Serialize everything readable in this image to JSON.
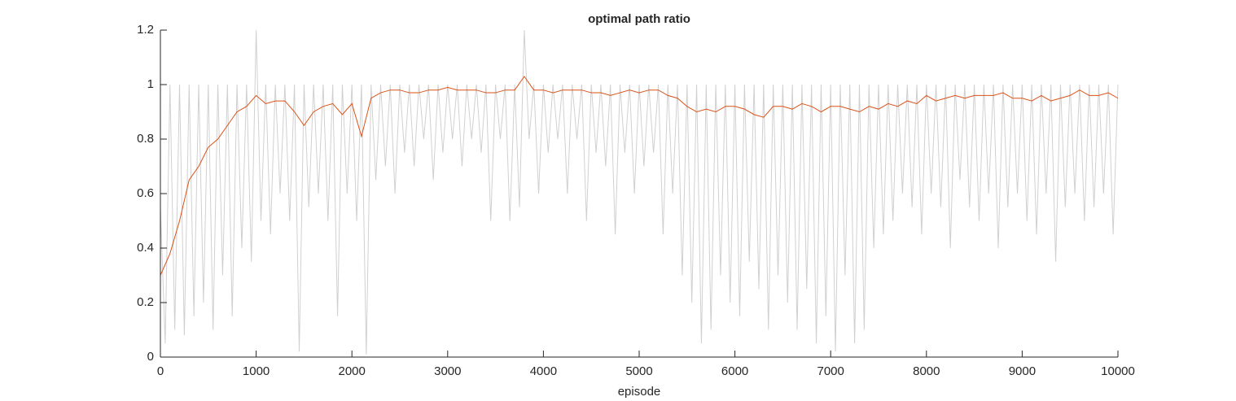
{
  "chart_data": {
    "type": "line",
    "title": "optimal path ratio",
    "x_label": "episode",
    "xlim": [
      0,
      10000
    ],
    "xticks": [
      0,
      1000,
      2000,
      3000,
      4000,
      5000,
      6000,
      7000,
      8000,
      9000,
      10000
    ],
    "ylim": [
      0,
      1.2
    ],
    "yticks": [
      0,
      0.2,
      0.4,
      0.6,
      0.8,
      1,
      1.2
    ],
    "series": [
      {
        "color": "#d0d0d0",
        "x": [
          0,
          50,
          100,
          150,
          200,
          250,
          300,
          350,
          400,
          450,
          500,
          550,
          600,
          650,
          700,
          750,
          800,
          850,
          900,
          950,
          1000,
          1050,
          1100,
          1150,
          1200,
          1250,
          1300,
          1350,
          1400,
          1450,
          1500,
          1550,
          1600,
          1650,
          1700,
          1750,
          1800,
          1850,
          1900,
          1950,
          2000,
          2050,
          2100,
          2150,
          2200,
          2250,
          2300,
          2350,
          2400,
          2450,
          2500,
          2550,
          2600,
          2650,
          2700,
          2750,
          2800,
          2850,
          2900,
          2950,
          3000,
          3050,
          3100,
          3150,
          3200,
          3250,
          3300,
          3350,
          3400,
          3450,
          3500,
          3550,
          3600,
          3650,
          3700,
          3750,
          3800,
          3850,
          3900,
          3950,
          4000,
          4050,
          4100,
          4150,
          4200,
          4250,
          4300,
          4350,
          4400,
          4450,
          4500,
          4550,
          4600,
          4650,
          4700,
          4750,
          4800,
          4850,
          4900,
          4950,
          5000,
          5050,
          5100,
          5150,
          5200,
          5250,
          5300,
          5350,
          5400,
          5450,
          5500,
          5550,
          5600,
          5650,
          5700,
          5750,
          5800,
          5850,
          5900,
          5950,
          6000,
          6050,
          6100,
          6150,
          6200,
          6250,
          6300,
          6350,
          6400,
          6450,
          6500,
          6550,
          6600,
          6650,
          6700,
          6750,
          6800,
          6850,
          6900,
          6950,
          7000,
          7050,
          7100,
          7150,
          7200,
          7250,
          7300,
          7350,
          7400,
          7450,
          7500,
          7550,
          7600,
          7650,
          7700,
          7750,
          7800,
          7850,
          7900,
          7950,
          8000,
          8050,
          8100,
          8150,
          8200,
          8250,
          8300,
          8350,
          8400,
          8450,
          8500,
          8550,
          8600,
          8650,
          8700,
          8750,
          8800,
          8850,
          8900,
          8950,
          9000,
          9050,
          9100,
          9150,
          9200,
          9250,
          9300,
          9350,
          9400,
          9450,
          9500,
          9550,
          9600,
          9650,
          9700,
          9750,
          9800,
          9850,
          9900,
          9950,
          10000
        ],
        "values": [
          0.55,
          0.05,
          1,
          0.1,
          1,
          0.08,
          1,
          0.15,
          1,
          0.2,
          1,
          0.1,
          1,
          0.3,
          1,
          0.15,
          1,
          0.4,
          1,
          0.35,
          1.2,
          0.5,
          1,
          0.45,
          1,
          0.6,
          1,
          0.5,
          1,
          0.02,
          1,
          0.55,
          1,
          0.6,
          1,
          0.5,
          1,
          0.15,
          1,
          0.6,
          1,
          0.5,
          1,
          0.01,
          1,
          0.65,
          1,
          0.7,
          1,
          0.6,
          1,
          0.75,
          1,
          0.7,
          1,
          0.8,
          1,
          0.65,
          1,
          0.75,
          1,
          0.8,
          1,
          0.7,
          1,
          0.8,
          1,
          0.75,
          1,
          0.5,
          1,
          0.8,
          1,
          0.5,
          1,
          0.55,
          1.2,
          0.8,
          1,
          0.6,
          1,
          0.75,
          1,
          0.8,
          1,
          0.6,
          1,
          0.8,
          1,
          0.5,
          1,
          0.75,
          1,
          0.7,
          1,
          0.45,
          1,
          0.75,
          1,
          0.6,
          1,
          0.7,
          1,
          0.75,
          1,
          0.45,
          1,
          0.6,
          1,
          0.3,
          1,
          0.2,
          1,
          0.05,
          1,
          0.1,
          1,
          0.3,
          1,
          0.2,
          1,
          0.15,
          1,
          0.35,
          1,
          0.25,
          1,
          0.1,
          1,
          0.3,
          1,
          0.2,
          1,
          0.1,
          1,
          0.25,
          1,
          0.05,
          1,
          0.15,
          1,
          0.02,
          1,
          0.3,
          1,
          0.05,
          1,
          0.1,
          1,
          0.4,
          1,
          0.45,
          1,
          0.5,
          1,
          0.6,
          1,
          0.55,
          1,
          0.45,
          1,
          0.6,
          1,
          0.55,
          1,
          0.4,
          1,
          0.65,
          1,
          0.55,
          1,
          0.5,
          1,
          0.6,
          1,
          0.4,
          1,
          0.55,
          1,
          0.6,
          1,
          0.5,
          1,
          0.45,
          1,
          0.6,
          1,
          0.35,
          1,
          0.55,
          1,
          0.6,
          1,
          0.5,
          1,
          0.55,
          1,
          0.6,
          1,
          0.45,
          1
        ]
      },
      {
        "color": "#d95319",
        "x": [
          0,
          100,
          200,
          300,
          400,
          500,
          600,
          700,
          800,
          900,
          1000,
          1100,
          1200,
          1300,
          1400,
          1500,
          1600,
          1700,
          1800,
          1900,
          2000,
          2100,
          2200,
          2300,
          2400,
          2500,
          2600,
          2700,
          2800,
          2900,
          3000,
          3100,
          3200,
          3300,
          3400,
          3500,
          3600,
          3700,
          3800,
          3900,
          4000,
          4100,
          4200,
          4300,
          4400,
          4500,
          4600,
          4700,
          4800,
          4900,
          5000,
          5100,
          5200,
          5300,
          5400,
          5500,
          5600,
          5700,
          5800,
          5900,
          6000,
          6100,
          6200,
          6300,
          6400,
          6500,
          6600,
          6700,
          6800,
          6900,
          7000,
          7100,
          7200,
          7300,
          7400,
          7500,
          7600,
          7700,
          7800,
          7900,
          8000,
          8100,
          8200,
          8300,
          8400,
          8500,
          8600,
          8700,
          8800,
          8900,
          9000,
          9100,
          9200,
          9300,
          9400,
          9500,
          9600,
          9700,
          9800,
          9900,
          10000
        ],
        "values": [
          0.3,
          0.38,
          0.5,
          0.65,
          0.7,
          0.77,
          0.8,
          0.85,
          0.9,
          0.92,
          0.96,
          0.93,
          0.94,
          0.94,
          0.9,
          0.85,
          0.9,
          0.92,
          0.93,
          0.89,
          0.93,
          0.81,
          0.95,
          0.97,
          0.98,
          0.98,
          0.97,
          0.97,
          0.98,
          0.98,
          0.99,
          0.98,
          0.98,
          0.98,
          0.97,
          0.97,
          0.98,
          0.98,
          1.03,
          0.98,
          0.98,
          0.97,
          0.98,
          0.98,
          0.98,
          0.97,
          0.97,
          0.96,
          0.97,
          0.98,
          0.97,
          0.98,
          0.98,
          0.96,
          0.95,
          0.92,
          0.9,
          0.91,
          0.9,
          0.92,
          0.92,
          0.91,
          0.89,
          0.88,
          0.92,
          0.92,
          0.91,
          0.93,
          0.92,
          0.9,
          0.92,
          0.92,
          0.91,
          0.9,
          0.92,
          0.91,
          0.93,
          0.92,
          0.94,
          0.93,
          0.96,
          0.94,
          0.95,
          0.96,
          0.95,
          0.96,
          0.96,
          0.96,
          0.97,
          0.95,
          0.95,
          0.94,
          0.96,
          0.94,
          0.95,
          0.96,
          0.98,
          0.96,
          0.96,
          0.97,
          0.95
        ]
      }
    ]
  }
}
